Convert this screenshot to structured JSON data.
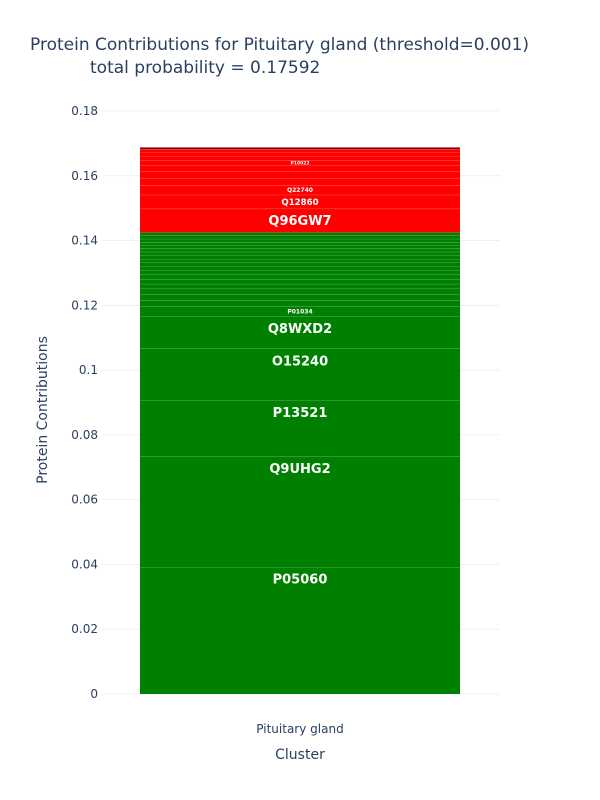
{
  "chart_data": {
    "type": "bar",
    "stacked": true,
    "title_lines": [
      "Protein Contributions for Pituitary gland (threshold=0.001)",
      "total probability = 0.17592"
    ],
    "xlabel": "Cluster",
    "ylabel": "Protein Contributions",
    "categories": [
      "Pituitary gland"
    ],
    "ylim": [
      0,
      0.18
    ],
    "yticks": [
      {
        "v": 0,
        "label": "0"
      },
      {
        "v": 0.02,
        "label": "0.02"
      },
      {
        "v": 0.04,
        "label": "0.04"
      },
      {
        "v": 0.06,
        "label": "0.06"
      },
      {
        "v": 0.08,
        "label": "0.08"
      },
      {
        "v": 0.1,
        "label": "0.1"
      },
      {
        "v": 0.12,
        "label": "0.12"
      },
      {
        "v": 0.14,
        "label": "0.14"
      },
      {
        "v": 0.16,
        "label": "0.16"
      },
      {
        "v": 0.18,
        "label": "0.18"
      }
    ],
    "grid": true,
    "colors": {
      "green": "#008000",
      "red": "#ff0000",
      "darkred": "#8b0000"
    },
    "segments": [
      {
        "name": "P05060",
        "value": 0.0392,
        "color": "green",
        "label": "P05060"
      },
      {
        "name": "Q9UHG2",
        "value": 0.0341,
        "color": "green",
        "label": "Q9UHG2"
      },
      {
        "name": "P13521",
        "value": 0.0173,
        "color": "green",
        "label": "P13521"
      },
      {
        "name": "O15240",
        "value": 0.016,
        "color": "green",
        "label": "O15240"
      },
      {
        "name": "Q8WXD2",
        "value": 0.01,
        "color": "green",
        "label": "Q8WXD2"
      },
      {
        "name": "P01034",
        "value": 0.003,
        "color": "green",
        "label": "P01034"
      },
      {
        "name": "",
        "value": 0.002,
        "color": "green",
        "label": ""
      },
      {
        "name": "",
        "value": 0.0018,
        "color": "green",
        "label": ""
      },
      {
        "name": "",
        "value": 0.0017,
        "color": "green",
        "label": ""
      },
      {
        "name": "",
        "value": 0.0015,
        "color": "green",
        "label": ""
      },
      {
        "name": "",
        "value": 0.0015,
        "color": "green",
        "label": ""
      },
      {
        "name": "",
        "value": 0.0014,
        "color": "green",
        "label": ""
      },
      {
        "name": "",
        "value": 0.0013,
        "color": "green",
        "label": ""
      },
      {
        "name": "",
        "value": 0.0012,
        "color": "green",
        "label": ""
      },
      {
        "name": "",
        "value": 0.0012,
        "color": "green",
        "label": ""
      },
      {
        "name": "",
        "value": 0.0011,
        "color": "green",
        "label": ""
      },
      {
        "name": "",
        "value": 0.0011,
        "color": "green",
        "label": ""
      },
      {
        "name": "",
        "value": 0.0011,
        "color": "green",
        "label": ""
      },
      {
        "name": "",
        "value": 0.001,
        "color": "green",
        "label": ""
      },
      {
        "name": "",
        "value": 0.001,
        "color": "green",
        "label": ""
      },
      {
        "name": "",
        "value": 0.001,
        "color": "green",
        "label": ""
      },
      {
        "name": "",
        "value": 0.001,
        "color": "green",
        "label": ""
      },
      {
        "name": "",
        "value": 0.001,
        "color": "green",
        "label": ""
      },
      {
        "name": "",
        "value": 0.001,
        "color": "green",
        "label": ""
      },
      {
        "name": "Q96GW7",
        "value": 0.0073,
        "color": "red",
        "label": "Q96GW7"
      },
      {
        "name": "Q12860",
        "value": 0.0043,
        "color": "red",
        "label": "Q12860"
      },
      {
        "name": "Q22740",
        "value": 0.003,
        "color": "red",
        "label": "Q22740"
      },
      {
        "name": "",
        "value": 0.0022,
        "color": "red",
        "label": ""
      },
      {
        "name": "",
        "value": 0.002,
        "color": "red",
        "label": ""
      },
      {
        "name": "",
        "value": 0.0019,
        "color": "red",
        "label": ""
      },
      {
        "name": "P10022",
        "value": 0.0016,
        "color": "red",
        "label": "P10022"
      },
      {
        "name": "",
        "value": 0.0013,
        "color": "red",
        "label": ""
      },
      {
        "name": "",
        "value": 0.0011,
        "color": "red",
        "label": ""
      },
      {
        "name": "",
        "value": 0.001,
        "color": "red",
        "label": ""
      },
      {
        "name": "",
        "value": 0.0006,
        "color": "darkred",
        "label": ""
      }
    ]
  }
}
